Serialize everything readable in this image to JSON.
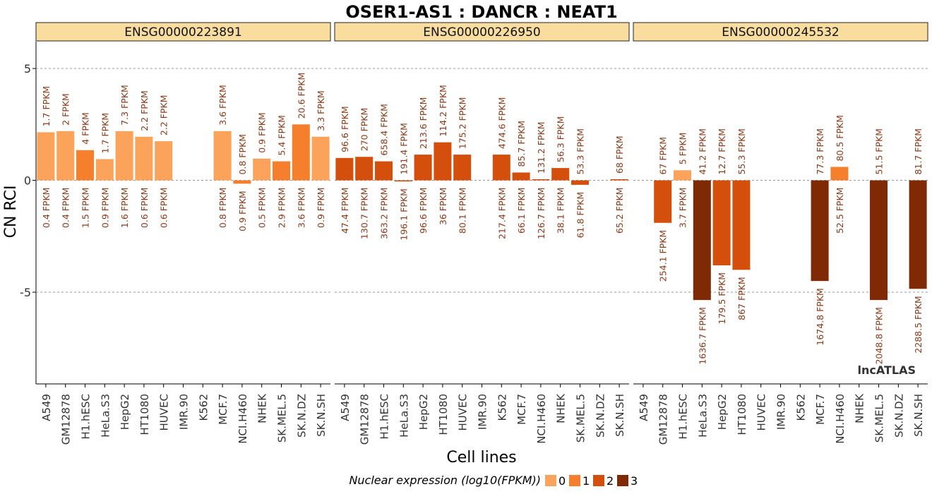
{
  "chart_data": {
    "type": "bar",
    "title": "OSER1-AS1 : DANCR : NEAT1",
    "xlabel": "Cell lines",
    "ylabel": "CN RCI",
    "ylim": [
      -9.1,
      6.2
    ],
    "yticks": [
      -5,
      0,
      5
    ],
    "grid": true,
    "watermark": "lncATLAS",
    "legend": {
      "title": "Nuclear expression (log10(FPKM))",
      "placement": "bottom",
      "entries": [
        {
          "label": "0",
          "color": "#fba35b"
        },
        {
          "label": "1",
          "color": "#f57f2c"
        },
        {
          "label": "2",
          "color": "#d44f0c"
        },
        {
          "label": "3",
          "color": "#7f2a05"
        }
      ]
    },
    "categories": [
      "A549",
      "GM12878",
      "H1.hESC",
      "HeLa.S3",
      "HepG2",
      "HT1080",
      "HUVEC",
      "IMR.90",
      "K562",
      "MCF.7",
      "NCI.H460",
      "NHEK",
      "SK.MEL.5",
      "SK.N.DZ",
      "SK.N.SH"
    ],
    "panels": [
      {
        "name": "ENSG00000223891",
        "values": [
          2.15,
          2.2,
          1.35,
          0.95,
          2.2,
          1.95,
          1.75,
          null,
          null,
          2.2,
          -0.15,
          0.97,
          0.85,
          2.5,
          1.95
        ],
        "levels": [
          0,
          0,
          1,
          0,
          0,
          0,
          0,
          null,
          null,
          0,
          1,
          0,
          1,
          1,
          0
        ],
        "top_labels": [
          "1.7 FPKM",
          "2 FPKM",
          "4 FPKM",
          "1.7 FPKM",
          "7.3 FPKM",
          "2.2 FPKM",
          "2.2 FPKM",
          "",
          "",
          "3.6 FPKM",
          "0.8 FPKM",
          "0.9 FPKM",
          "5.4 FPKM",
          "20.6 FPKM",
          "3.3 FPKM"
        ],
        "bottom_labels": [
          "0.4 FPKM",
          "0.4 FPKM",
          "1.5 FPKM",
          "0.9 FPKM",
          "1.6 FPKM",
          "0.6 FPKM",
          "0.6 FPKM",
          "",
          "",
          "0.8 FPKM",
          "0.9 FPKM",
          "0.5 FPKM",
          "2.9 FPKM",
          "3.6 FPKM",
          "0.9 FPKM"
        ]
      },
      {
        "name": "ENSG00000226950",
        "values": [
          1.0,
          1.05,
          0.85,
          -0.05,
          1.15,
          1.7,
          1.15,
          null,
          1.15,
          0.35,
          0.05,
          0.55,
          -0.2,
          null,
          0.05
        ],
        "levels": [
          2,
          2,
          2,
          2,
          2,
          2,
          2,
          null,
          2,
          2,
          2,
          2,
          2,
          null,
          2
        ],
        "top_labels": [
          "96.6 FPKM",
          "270 FPKM",
          "658.4 FPKM",
          "191.4 FPKM",
          "213.6 FPKM",
          "114.2 FPKM",
          "175.2 FPKM",
          "",
          "474.6 FPKM",
          "85.7 FPKM",
          "131.2 FPKM",
          "56.3 FPKM",
          "53.3 FPKM",
          "",
          "68 FPKM"
        ],
        "bottom_labels": [
          "47.4 FPKM",
          "130.7 FPKM",
          "363.2 FPKM",
          "196.1 FPKM",
          "96.6 FPKM",
          "36 FPKM",
          "80.1 FPKM",
          "",
          "217.4 FPKM",
          "66.1 FPKM",
          "126.7 FPKM",
          "38.1 FPKM",
          "61.8 FPKM",
          "",
          "65.2 FPKM"
        ]
      },
      {
        "name": "ENSG00000245532",
        "values": [
          null,
          -1.9,
          0.45,
          -5.35,
          -3.8,
          -4.0,
          null,
          null,
          null,
          -4.5,
          0.6,
          null,
          -5.35,
          null,
          -4.85
        ],
        "levels": [
          null,
          2,
          0,
          3,
          2,
          2,
          null,
          null,
          null,
          3,
          1,
          null,
          3,
          null,
          3
        ],
        "top_labels": [
          "",
          "67 FPKM",
          "5 FPKM",
          "41.2 FPKM",
          "12.7 FPKM",
          "55.3 FPKM",
          "",
          "",
          "",
          "77.3 FPKM",
          "80.5 FPKM",
          "",
          "51.5 FPKM",
          "",
          "81.7 FPKM"
        ],
        "bottom_labels": [
          "",
          "254.1 FPKM",
          "3.7 FPKM",
          "1636.7 FPKM",
          "179.5 FPKM",
          "867 FPKM",
          "",
          "",
          "",
          "1674.8 FPKM",
          "52.5 FPKM",
          "",
          "2048.8 FPKM",
          "",
          "2288.5 FPKM"
        ]
      }
    ]
  }
}
